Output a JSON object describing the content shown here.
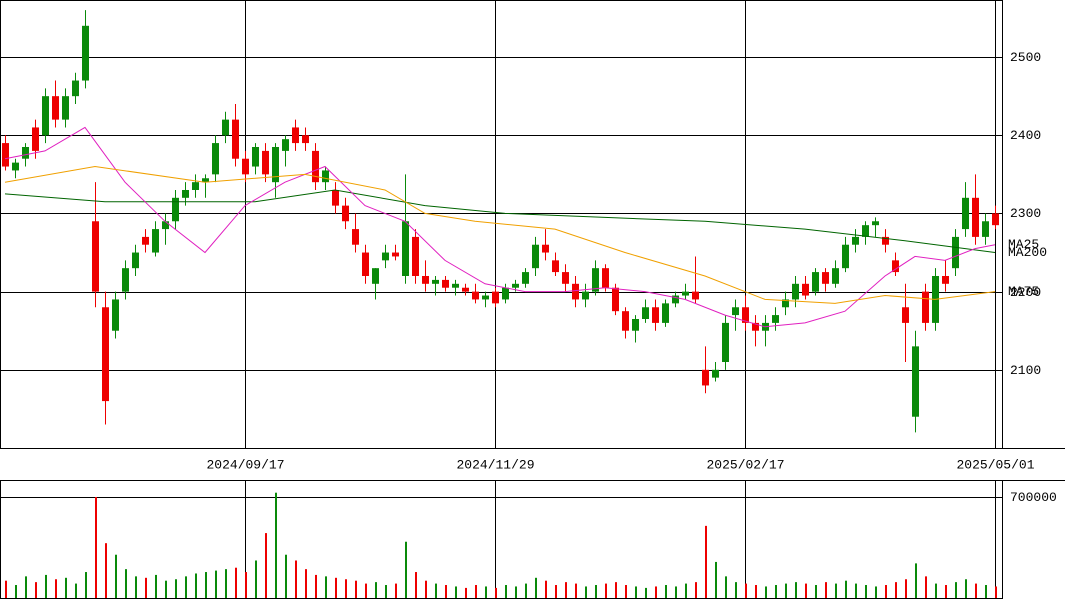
{
  "chart_data": [
    {
      "type": "candlestick",
      "up_color": "#0a8a0a",
      "down_color": "#ee0000",
      "xlim": [
        -0.5,
        99.7
      ],
      "ylim": [
        2000,
        2573
      ],
      "xticks": [
        {
          "value": 24,
          "label": "2024/09/17"
        },
        {
          "value": 49,
          "label": "2024/11/29"
        },
        {
          "value": 74,
          "label": "2025/02/17"
        },
        {
          "value": 99,
          "label": "2025/05/01"
        }
      ],
      "yticks": [
        2100,
        2200,
        2300,
        2400,
        2500
      ],
      "grid": true,
      "open": [
        2390,
        2355,
        2370,
        2410,
        2400,
        2450,
        2420,
        2450,
        2470,
        2290,
        2180,
        2150,
        2200,
        2230,
        2270,
        2250,
        2280,
        2290,
        2320,
        2330,
        2340,
        2350,
        2400,
        2420,
        2370,
        2360,
        2380,
        2340,
        2380,
        2410,
        2400,
        2380,
        2340,
        2330,
        2310,
        2280,
        2250,
        2210,
        2240,
        2250,
        2220,
        2270,
        2220,
        2210,
        2215,
        2205,
        2205,
        2200,
        2190,
        2200,
        2190,
        2205,
        2210,
        2230,
        2260,
        2240,
        2225,
        2210,
        2190,
        2200,
        2230,
        2205,
        2175,
        2150,
        2165,
        2180,
        2160,
        2185,
        2195,
        2200,
        2100,
        2090,
        2110,
        2170,
        2180,
        2160,
        2150,
        2160,
        2180,
        2190,
        2210,
        2200,
        2225,
        2210,
        2230,
        2260,
        2270,
        2285,
        2270,
        2240,
        2180,
        2040,
        2200,
        2160,
        2220,
        2230,
        2280,
        2320,
        2270,
        2300
      ],
      "high": [
        2400,
        2370,
        2390,
        2420,
        2460,
        2470,
        2460,
        2480,
        2560,
        2340,
        2200,
        2200,
        2240,
        2260,
        2280,
        2290,
        2300,
        2330,
        2340,
        2350,
        2350,
        2400,
        2430,
        2440,
        2380,
        2390,
        2390,
        2390,
        2400,
        2420,
        2410,
        2390,
        2360,
        2340,
        2320,
        2300,
        2260,
        2230,
        2260,
        2260,
        2350,
        2280,
        2240,
        2220,
        2220,
        2215,
        2210,
        2210,
        2200,
        2205,
        2210,
        2215,
        2230,
        2270,
        2280,
        2250,
        2235,
        2220,
        2210,
        2240,
        2235,
        2210,
        2180,
        2170,
        2190,
        2190,
        2190,
        2200,
        2210,
        2245,
        2130,
        2110,
        2170,
        2190,
        2195,
        2170,
        2170,
        2180,
        2200,
        2220,
        2220,
        2230,
        2230,
        2240,
        2270,
        2280,
        2290,
        2295,
        2280,
        2250,
        2210,
        2150,
        2210,
        2230,
        2240,
        2280,
        2340,
        2350,
        2300,
        2310
      ],
      "low": [
        2355,
        2345,
        2360,
        2370,
        2390,
        2410,
        2410,
        2440,
        2460,
        2180,
        2030,
        2140,
        2190,
        2220,
        2250,
        2245,
        2260,
        2280,
        2310,
        2320,
        2320,
        2340,
        2390,
        2360,
        2340,
        2350,
        2340,
        2320,
        2360,
        2380,
        2380,
        2330,
        2330,
        2300,
        2280,
        2250,
        2210,
        2190,
        2230,
        2240,
        2210,
        2210,
        2200,
        2195,
        2200,
        2195,
        2195,
        2185,
        2180,
        2180,
        2185,
        2200,
        2205,
        2220,
        2240,
        2220,
        2200,
        2180,
        2180,
        2195,
        2200,
        2170,
        2140,
        2135,
        2160,
        2150,
        2155,
        2180,
        2190,
        2185,
        2070,
        2085,
        2100,
        2150,
        2150,
        2130,
        2130,
        2150,
        2170,
        2180,
        2190,
        2195,
        2200,
        2205,
        2225,
        2250,
        2260,
        2270,
        2250,
        2220,
        2110,
        2020,
        2150,
        2150,
        2200,
        2220,
        2270,
        2260,
        2260,
        2280
      ],
      "close": [
        2360,
        2365,
        2385,
        2380,
        2450,
        2420,
        2450,
        2470,
        2540,
        2200,
        2060,
        2190,
        2230,
        2250,
        2260,
        2280,
        2290,
        2320,
        2330,
        2340,
        2345,
        2390,
        2420,
        2370,
        2350,
        2385,
        2350,
        2385,
        2395,
        2390,
        2390,
        2340,
        2355,
        2310,
        2290,
        2260,
        2220,
        2230,
        2250,
        2245,
        2290,
        2220,
        2210,
        2215,
        2205,
        2210,
        2200,
        2190,
        2195,
        2185,
        2205,
        2210,
        2225,
        2260,
        2250,
        2225,
        2210,
        2190,
        2200,
        2230,
        2205,
        2175,
        2150,
        2165,
        2180,
        2160,
        2185,
        2195,
        2200,
        2190,
        2080,
        2100,
        2160,
        2180,
        2160,
        2150,
        2160,
        2170,
        2190,
        2210,
        2195,
        2225,
        2210,
        2230,
        2260,
        2270,
        2285,
        2290,
        2260,
        2225,
        2160,
        2130,
        2160,
        2220,
        2210,
        2270,
        2320,
        2270,
        2290,
        2285
      ],
      "lines": [
        {
          "name": "MA200",
          "color": "#006400",
          "x": [
            0,
            10,
            25,
            33,
            42,
            50,
            60,
            70,
            80,
            90,
            99
          ],
          "values": [
            2325,
            2315,
            2315,
            2330,
            2310,
            2300,
            2295,
            2290,
            2280,
            2265,
            2250
          ]
        },
        {
          "name": "MA25",
          "color": "#e020c0",
          "x": [
            0,
            4,
            8,
            12,
            16,
            20,
            24,
            28,
            32,
            36,
            40,
            44,
            48,
            52,
            56,
            60,
            64,
            68,
            72,
            76,
            80,
            84,
            88,
            91,
            94,
            97,
            99
          ],
          "values": [
            2370,
            2380,
            2410,
            2340,
            2290,
            2250,
            2310,
            2340,
            2360,
            2310,
            2290,
            2240,
            2210,
            2200,
            2200,
            2205,
            2200,
            2190,
            2170,
            2155,
            2160,
            2175,
            2220,
            2245,
            2240,
            2255,
            2260
          ]
        },
        {
          "name": "MA75",
          "color": "#f0a000",
          "x": [
            0,
            9,
            20,
            30,
            38,
            42,
            47,
            55,
            62,
            70,
            76,
            83,
            88,
            93,
            99
          ],
          "values": [
            2340,
            2360,
            2340,
            2350,
            2330,
            2300,
            2290,
            2280,
            2250,
            2220,
            2190,
            2185,
            2195,
            2190,
            2200
          ]
        }
      ]
    },
    {
      "type": "bar",
      "ylim": [
        0,
        818000
      ],
      "yticks": [
        700000
      ],
      "values": [
        120000,
        90000,
        150000,
        110000,
        160000,
        130000,
        140000,
        100000,
        180000,
        700000,
        380000,
        300000,
        200000,
        150000,
        140000,
        160000,
        120000,
        130000,
        150000,
        170000,
        180000,
        190000,
        200000,
        210000,
        180000,
        260000,
        450000,
        730000,
        300000,
        260000,
        200000,
        160000,
        150000,
        140000,
        130000,
        120000,
        100000,
        110000,
        90000,
        100000,
        390000,
        180000,
        120000,
        100000,
        90000,
        80000,
        70000,
        90000,
        80000,
        70000,
        90000,
        80000,
        100000,
        140000,
        120000,
        90000,
        110000,
        100000,
        80000,
        90000,
        100000,
        110000,
        90000,
        80000,
        70000,
        80000,
        90000,
        80000,
        100000,
        110000,
        500000,
        250000,
        150000,
        110000,
        100000,
        90000,
        80000,
        90000,
        100000,
        110000,
        100000,
        90000,
        110000,
        100000,
        120000,
        100000,
        90000,
        80000,
        90000,
        110000,
        130000,
        240000,
        150000,
        100000,
        90000,
        110000,
        130000,
        100000,
        90000,
        80000
      ]
    }
  ]
}
